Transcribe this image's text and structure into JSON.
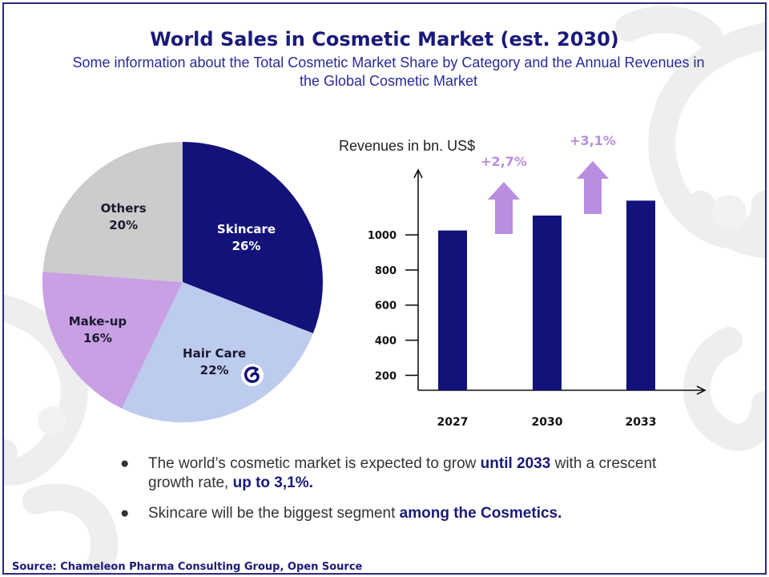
{
  "title": "World Sales in Cosmetic Market (est. 2030)",
  "subtitle": "Some information about the Total Cosmetic Market Share by Category and the Annual Revenues in the Global Cosmetic Market",
  "colors": {
    "navy": "#12127a",
    "light_blue": "#bccbee",
    "lavender": "#c9a0e4",
    "gray": "#cccccc",
    "arrow_purple": "#b98de0"
  },
  "chart_data": [
    {
      "type": "pie",
      "slices": [
        {
          "name": "Skincare",
          "value_label": "26%",
          "value": 26,
          "color": "#12127a",
          "text_color": "#ffffff"
        },
        {
          "name": "Hair Care",
          "value_label": "22%",
          "value": 22,
          "color": "#bccbee",
          "text_color": "#1a1a2e"
        },
        {
          "name": "Make-up",
          "value_label": "16%",
          "value": 16,
          "color": "#c9a0e4",
          "text_color": "#1a1a2e"
        },
        {
          "name": "Others",
          "value_label": "20%",
          "value": 20,
          "color": "#cccccc",
          "text_color": "#1a1a2e"
        }
      ],
      "logo_icon": "chameleon-logo-icon"
    },
    {
      "type": "bar",
      "ylabel": "Revenues in bn. US$",
      "categories": [
        "2027",
        "2030",
        "2033"
      ],
      "values": [
        1025,
        1110,
        1195
      ],
      "yticks": [
        200,
        400,
        600,
        800,
        1000
      ],
      "ylim": [
        115,
        1370
      ],
      "bar_color": "#12127a",
      "growth_annotations": [
        {
          "label": "+2,7%",
          "between": [
            "2027",
            "2030"
          ]
        },
        {
          "label": "+3,1%",
          "between": [
            "2030",
            "2033"
          ]
        }
      ]
    }
  ],
  "bullets": [
    {
      "before": "The world’s cosmetic market is expected to grow ",
      "bold1": "until 2033",
      "middle": " with a crescent growth rate, ",
      "bold2": "up to 3,1%."
    },
    {
      "before": "Skincare will be the biggest segment ",
      "bold1": "among the Cosmetics.",
      "middle": "",
      "bold2": ""
    }
  ],
  "bullet_symbol": "●",
  "source": "Source:  Chameleon Pharma Consulting Group, Open Source"
}
